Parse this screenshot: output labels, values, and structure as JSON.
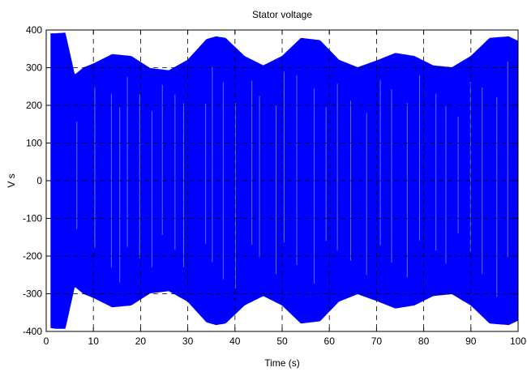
{
  "chart_data": {
    "type": "line",
    "title": "Stator voltage",
    "xlabel": "Time (s)",
    "ylabel": "V s",
    "xlim": [
      0,
      100
    ],
    "ylim": [
      -400,
      400
    ],
    "xticks": [
      0,
      10,
      20,
      30,
      40,
      50,
      60,
      70,
      80,
      90,
      100
    ],
    "yticks": [
      -400,
      -300,
      -200,
      -100,
      0,
      100,
      200,
      300,
      400
    ],
    "xtick_labels": [
      "0",
      "10",
      "20",
      "30",
      "40",
      "50",
      "60",
      "70",
      "80",
      "90",
      "100"
    ],
    "ytick_labels": [
      "-400",
      "-300",
      "-200",
      "-100",
      "0",
      "100",
      "200",
      "300",
      "400"
    ],
    "grid": true,
    "legend": false,
    "series": [
      {
        "color": "#0000ff",
        "style": "oscillating signal, filled band between envelopes",
        "upper_envelope": {
          "x": [
            1,
            2,
            4,
            6,
            8,
            10,
            14,
            18,
            22,
            26,
            30,
            34,
            36,
            38,
            42,
            46,
            50,
            54,
            58,
            62,
            66,
            70,
            74,
            78,
            82,
            86,
            90,
            94,
            98,
            100
          ],
          "y": [
            390,
            390,
            392,
            280,
            300,
            310,
            335,
            330,
            298,
            292,
            320,
            375,
            382,
            378,
            330,
            305,
            330,
            378,
            372,
            320,
            300,
            318,
            338,
            330,
            305,
            300,
            330,
            378,
            382,
            370
          ]
        },
        "lower_envelope": {
          "x": [
            1,
            2,
            4,
            6,
            8,
            10,
            14,
            18,
            22,
            26,
            30,
            34,
            36,
            38,
            42,
            46,
            50,
            54,
            58,
            62,
            66,
            70,
            74,
            78,
            82,
            86,
            90,
            94,
            98,
            100
          ],
          "y": [
            -390,
            -392,
            -392,
            -280,
            -300,
            -310,
            -335,
            -330,
            -298,
            -292,
            -320,
            -375,
            -382,
            -378,
            -330,
            -305,
            -330,
            -378,
            -372,
            -320,
            -300,
            -318,
            -338,
            -330,
            -305,
            -300,
            -330,
            -378,
            -382,
            -370
          ]
        }
      }
    ]
  }
}
